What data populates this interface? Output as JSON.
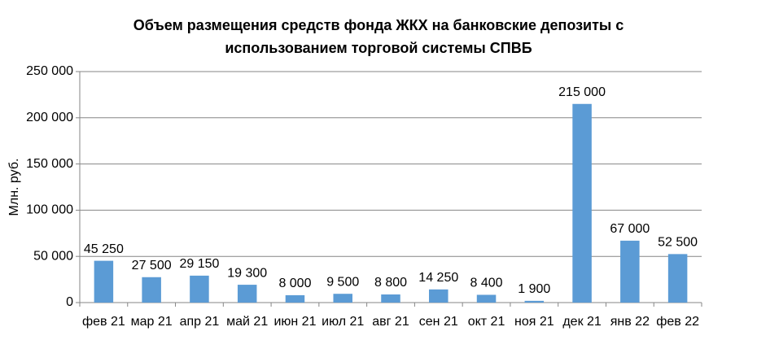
{
  "chart_data": {
    "type": "bar",
    "title": [
      "Объем размещения средств фонда ЖКХ на банковские депозиты с",
      "использованием торговой системы СПВБ"
    ],
    "y_label": "Млн. руб.",
    "categories": [
      "фев 21",
      "мар 21",
      "апр 21",
      "май 21",
      "июн 21",
      "июл 21",
      "авг 21",
      "сен 21",
      "окт 21",
      "ноя 21",
      "дек 21",
      "янв 22",
      "фев 22"
    ],
    "values": [
      45250,
      27500,
      29150,
      19300,
      8000,
      9500,
      8800,
      14250,
      8400,
      1900,
      215000,
      67000,
      52500
    ],
    "value_labels": [
      "45 250",
      "27 500",
      "29 150",
      "19 300",
      "8 000",
      "9 500",
      "8 800",
      "14 250",
      "8 400",
      "1 900",
      "215 000",
      "67 000",
      "52 500"
    ],
    "color": "#5b9bd5",
    "ylim": [
      0,
      250000
    ],
    "yticks": [
      0,
      {
        "value": 50000,
        "label": "50 000"
      },
      {
        "value": 100000,
        "label": "100 000"
      },
      {
        "value": 150000,
        "label": "150 000"
      },
      {
        "value": 200000,
        "label": "200 000"
      },
      {
        "value": 250000,
        "label": "250 000"
      }
    ],
    "grid": true
  }
}
